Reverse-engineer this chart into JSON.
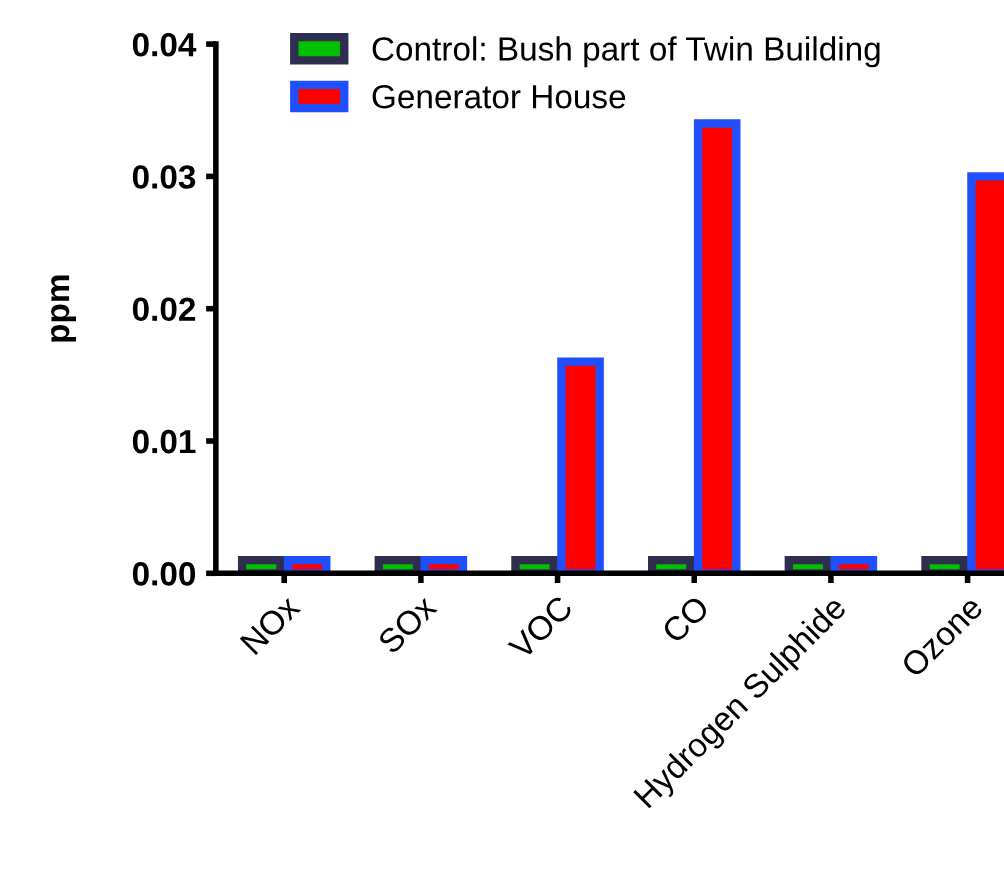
{
  "chart_data": {
    "type": "bar",
    "ylabel": "ppm",
    "categories": [
      "NOx",
      "SOx",
      "VOC",
      "CO",
      "Hydrogen Sulphide",
      "Ozone"
    ],
    "series": [
      {
        "name": "Control: Bush part of Twin Building",
        "color": "#00c000",
        "values": [
          0.001,
          0.001,
          0.001,
          0.001,
          0.001,
          0.001
        ]
      },
      {
        "name": "Generator House",
        "color": "#ff0000",
        "values": [
          0.001,
          0.001,
          0.016,
          0.034,
          0.001,
          0.03
        ]
      }
    ],
    "ylim": [
      0,
      0.04
    ],
    "yticks": [
      {
        "value": 0,
        "label": "0.00"
      },
      {
        "value": 0.01,
        "label": "0.01"
      },
      {
        "value": 0.02,
        "label": "0.02"
      },
      {
        "value": 0.03,
        "label": "0.03"
      },
      {
        "value": 0.04,
        "label": "0.04"
      }
    ],
    "grid": false,
    "legend": "top left"
  }
}
